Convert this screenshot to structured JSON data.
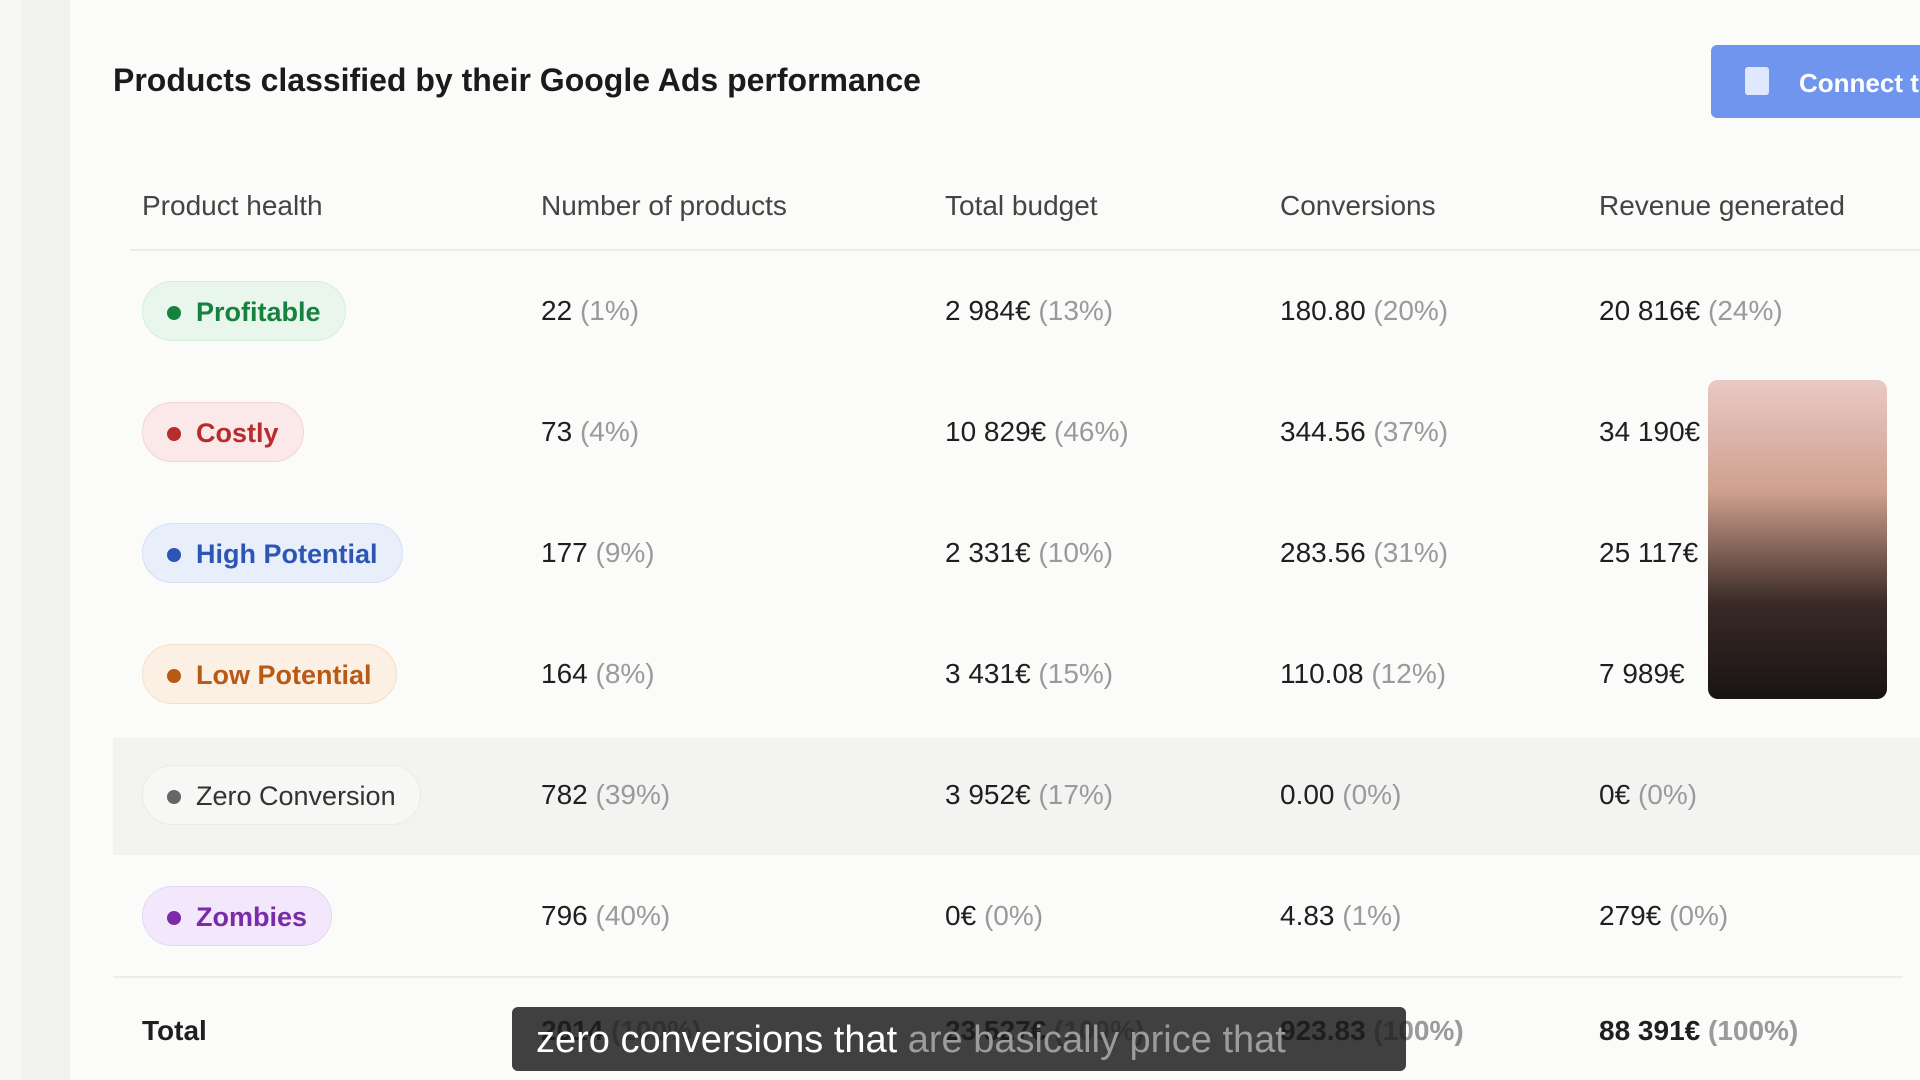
{
  "header": {
    "title": "Products classified by their Google Ads performance",
    "button": "Connect t"
  },
  "table": {
    "columns": [
      "Product health",
      "Number of products",
      "Total budget",
      "Conversions",
      "Revenue generated"
    ],
    "rows": [
      {
        "health": "Profitable",
        "cells": [
          [
            "22",
            "(1%)"
          ],
          [
            "2 984€",
            "(13%)"
          ],
          [
            "180.80",
            "(20%)"
          ],
          [
            "20 816€",
            "(24%)"
          ]
        ]
      },
      {
        "health": "Costly",
        "cells": [
          [
            "73",
            "(4%)"
          ],
          [
            "10 829€",
            "(46%)"
          ],
          [
            "344.56",
            "(37%)"
          ],
          [
            "34 190€"
          ]
        ]
      },
      {
        "health": "High Potential",
        "cells": [
          [
            "177",
            "(9%)"
          ],
          [
            "2 331€",
            "(10%)"
          ],
          [
            "283.56",
            "(31%)"
          ],
          [
            "25 117€"
          ]
        ]
      },
      {
        "health": "Low Potential",
        "cells": [
          [
            "164",
            "(8%)"
          ],
          [
            "3 431€",
            "(15%)"
          ],
          [
            "110.08",
            "(12%)"
          ],
          [
            "7 989€"
          ]
        ]
      },
      {
        "health": "Zero Conversion",
        "cells": [
          [
            "782",
            "(39%)"
          ],
          [
            "3 952€",
            "(17%)"
          ],
          [
            "0.00",
            "(0%)"
          ],
          [
            "0€",
            "(0%)"
          ]
        ]
      },
      {
        "health": "Zombies",
        "cells": [
          [
            "796",
            "(40%)"
          ],
          [
            "0€",
            "(0%)"
          ],
          [
            "4.83",
            "(1%)"
          ],
          [
            "279€",
            "(0%)"
          ]
        ]
      }
    ],
    "total": {
      "label": "Total",
      "cells": [
        [
          "2014",
          "(100%)"
        ],
        [
          "23 527€",
          "(100%)"
        ],
        [
          "923.83",
          "(100%)"
        ],
        [
          "88 391€",
          "(100%)"
        ]
      ]
    }
  },
  "subtitle": {
    "spoken": "zero conversions that",
    "upcoming": "are basically price that"
  }
}
